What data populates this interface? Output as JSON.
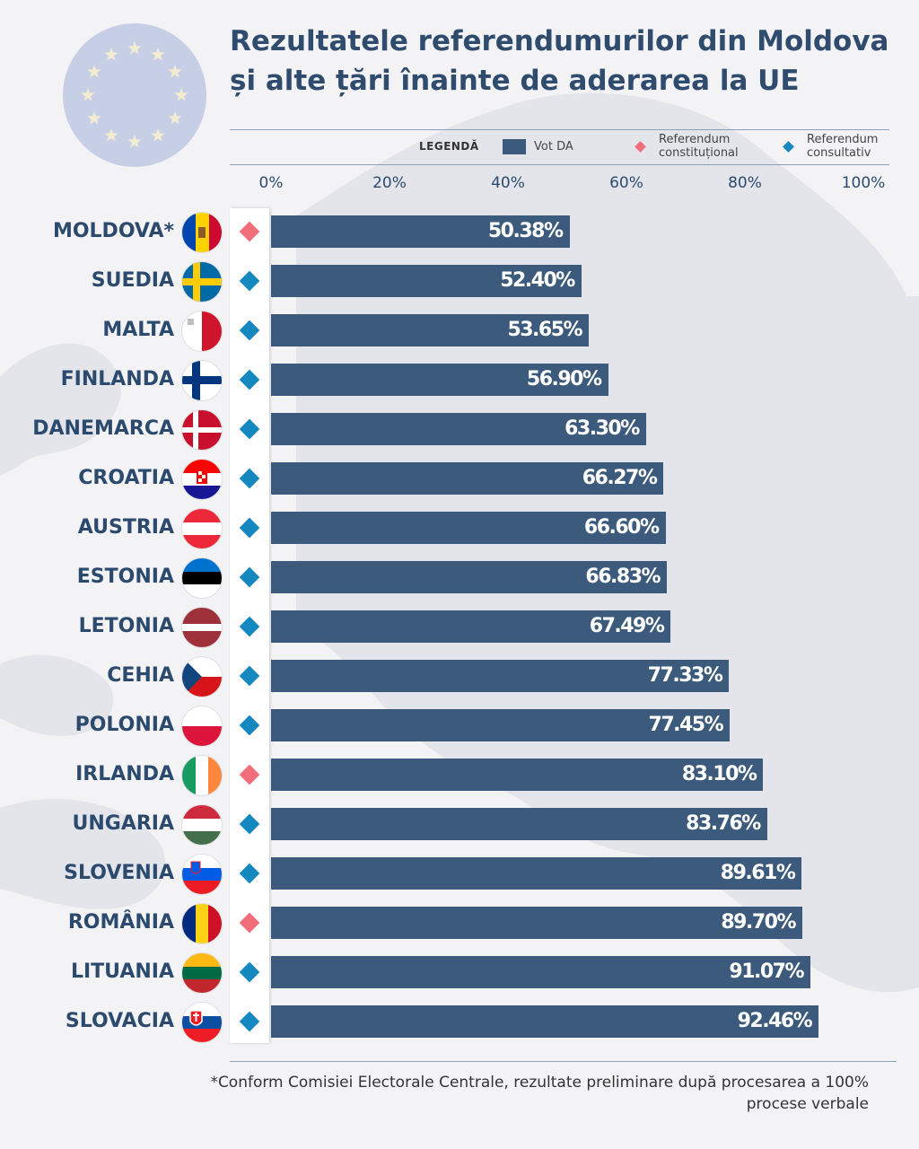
{
  "title": "Rezultatele referendumurilor din Moldova și alte țări înainte de aderarea la UE",
  "legend": {
    "title": "LEGENDĂ",
    "vote_yes": "Vot DA",
    "constitutional": "Referendum constituțional",
    "consultative": "Referendum consultativ"
  },
  "footnote": "*Conform Comisiei Electorale Centrale, rezultate preliminare după procesarea a 100% procese verbale",
  "colors": {
    "bar": "#3c5a7c",
    "constitutional": "#f26d7a",
    "consultative": "#1488bf",
    "title": "#2f4b6e"
  },
  "chart_data": {
    "type": "bar",
    "orientation": "horizontal",
    "xlim": [
      0,
      100
    ],
    "x_ticks": [
      "0%",
      "20%",
      "40%",
      "60%",
      "80%",
      "100%"
    ],
    "grid": false,
    "legend_position": "top",
    "categories": [
      "MOLDOVA*",
      "SUEDIA",
      "MALTA",
      "FINLANDA",
      "DANEMARCA",
      "CROATIA",
      "AUSTRIA",
      "ESTONIA",
      "LETONIA",
      "CEHIA",
      "POLONIA",
      "IRLANDA",
      "UNGARIA",
      "SLOVENIA",
      "ROMÂNIA",
      "LITUANIA",
      "SLOVACIA"
    ],
    "series": [
      {
        "name": "Vot DA",
        "values": [
          50.38,
          52.4,
          53.65,
          56.9,
          63.3,
          66.27,
          66.6,
          66.83,
          67.49,
          77.33,
          77.45,
          83.1,
          83.76,
          89.61,
          89.7,
          91.07,
          92.46
        ]
      }
    ],
    "value_labels": [
      "50.38%",
      "52.40%",
      "53.65%",
      "56.90%",
      "63.30%",
      "66.27%",
      "66.60%",
      "66.83%",
      "67.49%",
      "77.33%",
      "77.45%",
      "83.10%",
      "83.76%",
      "89.61%",
      "89.70%",
      "91.07%",
      "92.46%"
    ],
    "referendum_type": [
      "constitutional",
      "consultative",
      "consultative",
      "consultative",
      "consultative",
      "consultative",
      "consultative",
      "consultative",
      "consultative",
      "consultative",
      "consultative",
      "constitutional",
      "consultative",
      "consultative",
      "constitutional",
      "consultative",
      "consultative"
    ]
  }
}
